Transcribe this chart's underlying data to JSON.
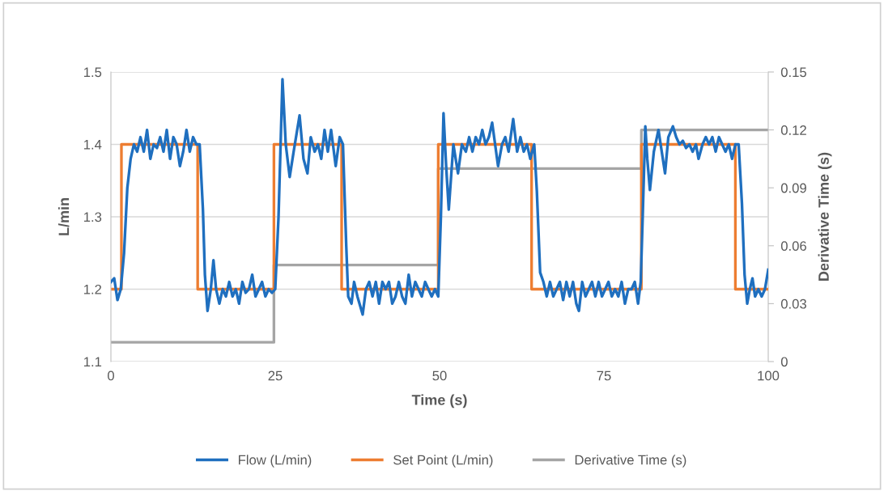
{
  "chart_data": {
    "type": "line",
    "xlabel": "Time (s)",
    "ylabel": "L/min",
    "y2label": "Derivative Time (s)",
    "xlim": [
      0,
      100
    ],
    "xticks": [
      0,
      25,
      50,
      75,
      100
    ],
    "ylim": [
      1.1,
      1.5
    ],
    "yticks": [
      1.1,
      1.2,
      1.3,
      1.4,
      1.5
    ],
    "y2lim": [
      0,
      0.15
    ],
    "y2ticks": [
      0,
      0.03,
      0.06,
      0.09,
      0.12,
      0.15
    ],
    "grid": "y",
    "legend": "bottom",
    "series": [
      {
        "name": "Flow (L/min)",
        "color": "#1f6fbf",
        "x": [
          0,
          0.5,
          1.0,
          1.5,
          2.0,
          2.5,
          3.0,
          3.5,
          4.0,
          4.5,
          5.0,
          5.5,
          6.0,
          6.5,
          7.0,
          7.5,
          8.0,
          8.5,
          9.0,
          9.5,
          10.0,
          10.5,
          11.0,
          11.5,
          12.0,
          12.5,
          13.0,
          13.5,
          14.0,
          14.3,
          14.7,
          15.2,
          15.6,
          16.0,
          16.5,
          17.0,
          17.5,
          18.0,
          18.5,
          19.0,
          19.5,
          20.0,
          20.5,
          21.0,
          21.5,
          22.0,
          22.5,
          23.0,
          23.5,
          24.0,
          24.5,
          25.0,
          25.5,
          26.1,
          26.6,
          27.2,
          27.8,
          28.7,
          29.3,
          29.9,
          30.4,
          31.0,
          31.5,
          32.0,
          32.5,
          33.0,
          33.5,
          34.2,
          34.8,
          35.3,
          35.8,
          36.1,
          36.6,
          37.0,
          37.5,
          38.3,
          38.8,
          39.3,
          39.8,
          40.3,
          40.8,
          41.3,
          41.8,
          42.3,
          42.8,
          43.3,
          43.8,
          44.3,
          44.8,
          45.3,
          45.8,
          46.3,
          46.8,
          47.3,
          47.8,
          48.3,
          48.8,
          49.3,
          49.8,
          50.2,
          50.6,
          51.0,
          51.4,
          52.1,
          52.8,
          53.4,
          54.0,
          54.5,
          55.0,
          55.5,
          56.0,
          56.5,
          57.0,
          57.5,
          58.0,
          58.9,
          59.5,
          60.0,
          60.5,
          61.2,
          61.8,
          62.3,
          62.8,
          63.3,
          63.8,
          64.4,
          64.8,
          65.3,
          65.8,
          66.3,
          66.8,
          67.3,
          67.8,
          68.3,
          68.8,
          69.3,
          69.8,
          70.3,
          70.8,
          71.2,
          71.7,
          72.2,
          72.7,
          73.2,
          73.7,
          74.2,
          74.7,
          75.2,
          75.7,
          76.2,
          76.7,
          77.2,
          77.7,
          78.2,
          78.7,
          79.2,
          79.7,
          80.2,
          80.6,
          80.9,
          81.3,
          81.6,
          82.0,
          82.6,
          83.3,
          83.8,
          84.3,
          84.8,
          85.5,
          86.0,
          86.5,
          87.0,
          87.5,
          88.0,
          88.5,
          89.0,
          89.4,
          90.0,
          90.5,
          91.0,
          91.5,
          92.0,
          92.5,
          93.0,
          93.5,
          94.0,
          94.5,
          95.0,
          95.5,
          96.0,
          96.4,
          96.8,
          97.2,
          97.6,
          98.0,
          98.5,
          99.0,
          99.5,
          100
        ],
        "values": [
          1.21,
          1.215,
          1.185,
          1.2,
          1.25,
          1.34,
          1.38,
          1.4,
          1.39,
          1.41,
          1.39,
          1.42,
          1.38,
          1.4,
          1.395,
          1.41,
          1.39,
          1.42,
          1.38,
          1.41,
          1.4,
          1.37,
          1.39,
          1.42,
          1.39,
          1.41,
          1.4,
          1.4,
          1.31,
          1.22,
          1.17,
          1.2,
          1.24,
          1.2,
          1.18,
          1.2,
          1.19,
          1.21,
          1.19,
          1.2,
          1.18,
          1.21,
          1.195,
          1.2,
          1.22,
          1.19,
          1.2,
          1.21,
          1.19,
          1.2,
          1.195,
          1.2,
          1.3,
          1.49,
          1.4,
          1.355,
          1.39,
          1.44,
          1.38,
          1.36,
          1.41,
          1.39,
          1.4,
          1.38,
          1.42,
          1.39,
          1.42,
          1.37,
          1.41,
          1.4,
          1.26,
          1.19,
          1.18,
          1.21,
          1.19,
          1.165,
          1.2,
          1.21,
          1.19,
          1.21,
          1.18,
          1.21,
          1.2,
          1.21,
          1.18,
          1.19,
          1.21,
          1.19,
          1.18,
          1.22,
          1.19,
          1.21,
          1.2,
          1.19,
          1.21,
          1.2,
          1.19,
          1.2,
          1.19,
          1.3,
          1.443,
          1.37,
          1.31,
          1.4,
          1.36,
          1.4,
          1.39,
          1.41,
          1.39,
          1.41,
          1.4,
          1.42,
          1.4,
          1.41,
          1.43,
          1.37,
          1.4,
          1.41,
          1.39,
          1.435,
          1.39,
          1.41,
          1.39,
          1.4,
          1.38,
          1.4,
          1.335,
          1.223,
          1.21,
          1.19,
          1.21,
          1.19,
          1.2,
          1.21,
          1.185,
          1.21,
          1.19,
          1.21,
          1.18,
          1.17,
          1.21,
          1.19,
          1.2,
          1.21,
          1.19,
          1.21,
          1.19,
          1.2,
          1.21,
          1.19,
          1.2,
          1.19,
          1.21,
          1.18,
          1.2,
          1.2,
          1.21,
          1.18,
          1.21,
          1.3,
          1.425,
          1.38,
          1.337,
          1.39,
          1.42,
          1.39,
          1.36,
          1.41,
          1.425,
          1.41,
          1.4,
          1.405,
          1.395,
          1.4,
          1.39,
          1.4,
          1.38,
          1.4,
          1.41,
          1.4,
          1.41,
          1.39,
          1.41,
          1.4,
          1.39,
          1.4,
          1.38,
          1.4,
          1.4,
          1.318,
          1.22,
          1.18,
          1.2,
          1.215,
          1.19,
          1.2,
          1.19,
          1.2,
          1.227
        ]
      },
      {
        "name": "Set Point (L/min)",
        "type": "step",
        "color": "#ed7d31",
        "x": [
          0,
          1.6,
          13.2,
          24.8,
          35.1,
          49.8,
          64.0,
          80.7,
          95.0,
          100
        ],
        "values": [
          1.2,
          1.4,
          1.2,
          1.4,
          1.2,
          1.4,
          1.2,
          1.4,
          1.2,
          1.2
        ]
      },
      {
        "name": "Derivative Time (s)",
        "type": "step",
        "axis": "y2",
        "color": "#a5a5a5",
        "x": [
          0,
          24.8,
          49.8,
          80.7,
          100
        ],
        "values": [
          0.01,
          0.05,
          0.1,
          0.12,
          0.12
        ]
      }
    ]
  }
}
